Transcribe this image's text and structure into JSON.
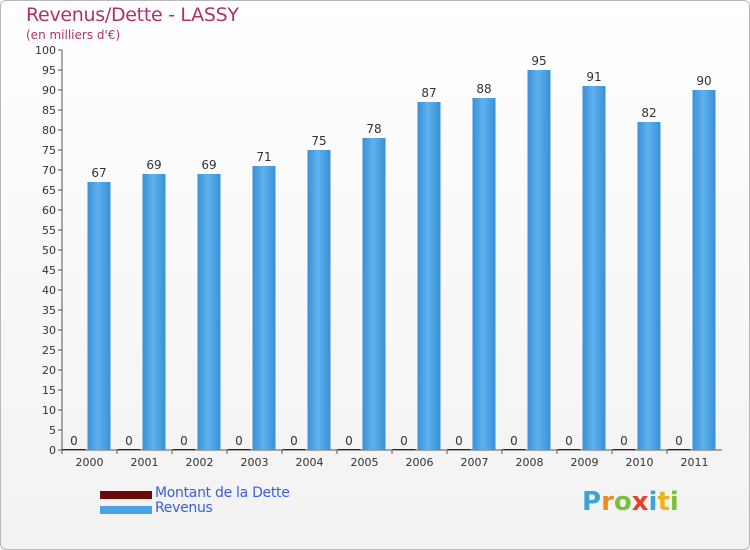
{
  "chart_data": {
    "type": "bar",
    "title": "Revenus/Dette - LASSY",
    "subtitle": "(en milliers d'€)",
    "categories": [
      "2000",
      "2001",
      "2002",
      "2003",
      "2004",
      "2005",
      "2006",
      "2007",
      "2008",
      "2009",
      "2010",
      "2011"
    ],
    "series": [
      {
        "name": "Montant de la Dette",
        "color": "#6b0a0a",
        "values": [
          0,
          0,
          0,
          0,
          0,
          0,
          0,
          0,
          0,
          0,
          0,
          0
        ]
      },
      {
        "name": "Revenus",
        "color": "#4aa3e6",
        "values": [
          67,
          69,
          69,
          71,
          75,
          78,
          87,
          88,
          95,
          91,
          82,
          90
        ]
      }
    ],
    "ylim": [
      0,
      100
    ],
    "yticks": [
      0,
      5,
      10,
      15,
      20,
      25,
      30,
      35,
      40,
      45,
      50,
      55,
      60,
      65,
      70,
      75,
      80,
      85,
      90,
      95,
      100
    ],
    "grid": false,
    "legend": "bottom-left"
  },
  "logo": {
    "letters": [
      "P",
      "r",
      "o",
      "x",
      "i",
      "t",
      "i"
    ]
  }
}
